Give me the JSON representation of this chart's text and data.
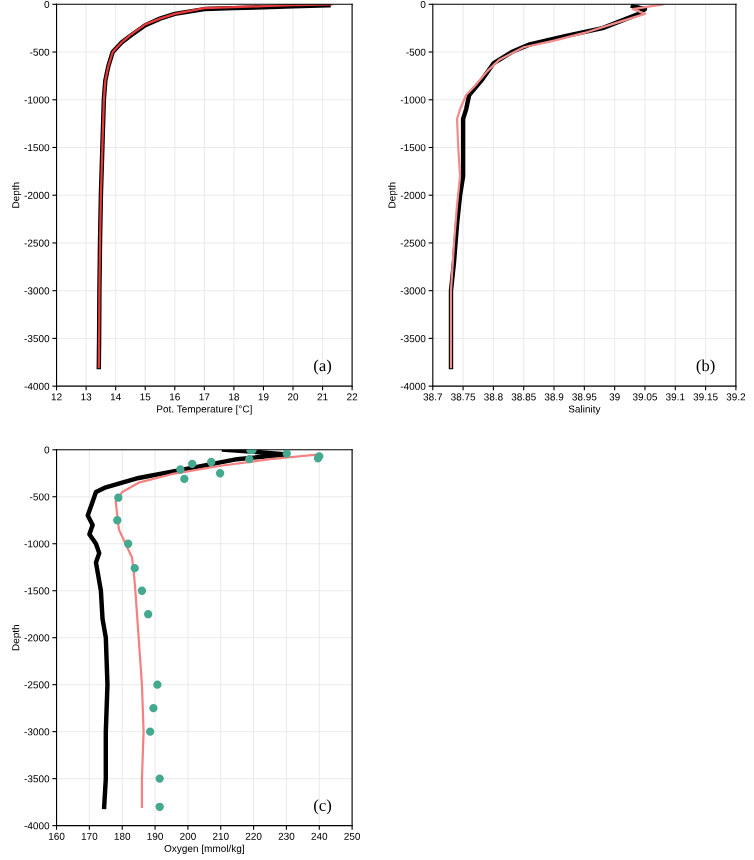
{
  "chart_data": [
    {
      "type": "line",
      "xlabel": "Pot. Temperature [°C]",
      "ylabel": "Depth",
      "annotations": [
        "(a)"
      ],
      "xlim": [
        12,
        22
      ],
      "xticks": [
        12,
        13,
        14,
        15,
        16,
        17,
        18,
        19,
        20,
        21,
        22
      ],
      "ylim": [
        -4000,
        0
      ],
      "yticks": [
        -4000,
        -3500,
        -3000,
        -2500,
        -2000,
        -1500,
        -1000,
        -500,
        0
      ],
      "grid": true,
      "series": [
        {
          "color": "#000000",
          "x": [
            21.2,
            20,
            19,
            18,
            17,
            16,
            15.5,
            15,
            14.5,
            14.2,
            13.9,
            13.75,
            13.65,
            13.6,
            13.55,
            13.5,
            13.47,
            13.45,
            13.44,
            13.43
          ],
          "values": [
            -10,
            -20,
            -30,
            -40,
            -50,
            -100,
            -150,
            -220,
            -330,
            -400,
            -500,
            -650,
            -800,
            -1000,
            -1500,
            -2000,
            -2500,
            -3000,
            -3500,
            -3800
          ]
        },
        {
          "color": "#e83a3a",
          "x": [
            21.3,
            20,
            19,
            18,
            17,
            16,
            15.5,
            15,
            14.5,
            14.2,
            13.9,
            13.75,
            13.65,
            13.6,
            13.55,
            13.5,
            13.47,
            13.45,
            13.44,
            13.43
          ],
          "values": [
            0,
            -10,
            -20,
            -30,
            -40,
            -100,
            -150,
            -210,
            -320,
            -400,
            -500,
            -650,
            -800,
            -1000,
            -1500,
            -2000,
            -2500,
            -3000,
            -3500,
            -3800
          ]
        }
      ]
    },
    {
      "type": "line",
      "xlabel": "Salinity",
      "ylabel": "Depth",
      "annotations": [
        "(b)"
      ],
      "xlim": [
        38.7,
        39.2
      ],
      "xticks": [
        38.7,
        38.75,
        38.8,
        38.85,
        38.9,
        38.95,
        39,
        39.05,
        39.1,
        39.15,
        39.2
      ],
      "ylim": [
        -4000,
        0
      ],
      "yticks": [
        -4000,
        -3500,
        -3000,
        -2500,
        -2000,
        -1500,
        -1000,
        -500,
        0
      ],
      "grid": true,
      "series": [
        {
          "color": "#000000",
          "x": [
            39.03,
            39.05,
            39.04,
            39.02,
            38.98,
            38.92,
            38.86,
            38.83,
            38.8,
            38.78,
            38.76,
            38.755,
            38.75,
            38.75,
            38.75,
            38.745,
            38.74,
            38.735,
            38.73,
            38.73,
            38.73
          ],
          "values": [
            -20,
            -50,
            -100,
            -150,
            -250,
            -330,
            -420,
            -500,
            -620,
            -800,
            -950,
            -1100,
            -1200,
            -1500,
            -1800,
            -2000,
            -2300,
            -2700,
            -3000,
            -3500,
            -3800
          ]
        },
        {
          "color": "#f28b8b",
          "x": [
            39.08,
            39.03,
            39.05,
            39.0,
            38.95,
            38.9,
            38.85,
            38.81,
            38.79,
            38.77,
            38.755,
            38.745,
            38.74,
            38.742,
            38.745,
            38.74,
            38.735,
            38.73,
            38.73
          ],
          "values": [
            0,
            -50,
            -100,
            -200,
            -300,
            -380,
            -450,
            -580,
            -700,
            -850,
            -950,
            -1100,
            -1200,
            -1500,
            -1800,
            -2100,
            -2500,
            -3000,
            -3800
          ]
        }
      ]
    },
    {
      "type": "line",
      "xlabel": "Oxygen [mmol/kg]",
      "ylabel": "Depth",
      "annotations": [
        "(c)"
      ],
      "xlim": [
        160,
        250
      ],
      "xticks": [
        160,
        170,
        180,
        190,
        200,
        210,
        220,
        230,
        240,
        250
      ],
      "ylim": [
        -4000,
        0
      ],
      "yticks": [
        -4000,
        -3500,
        -3000,
        -2500,
        -2000,
        -1500,
        -1000,
        -500,
        0
      ],
      "grid": true,
      "series": [
        {
          "color": "#000000",
          "x": [
            211,
            220,
            230,
            215,
            200,
            185,
            175,
            172,
            171,
            170,
            169.5,
            171,
            170,
            172,
            173,
            172,
            173.5,
            174,
            175,
            175.5,
            175,
            175,
            174.5
          ],
          "values": [
            0,
            -20,
            -50,
            -100,
            -200,
            -300,
            -400,
            -450,
            -550,
            -650,
            -700,
            -800,
            -900,
            -1000,
            -1100,
            -1200,
            -1500,
            -1800,
            -2000,
            -2500,
            -3000,
            -3500,
            -3800
          ]
        },
        {
          "color": "#f58080",
          "x": [
            240,
            225,
            210,
            195,
            185,
            180,
            178,
            178.5,
            179,
            181,
            183,
            183.5,
            184,
            185,
            186,
            186.5,
            186,
            186
          ],
          "values": [
            -50,
            -100,
            -170,
            -260,
            -350,
            -450,
            -550,
            -700,
            -850,
            -1000,
            -1150,
            -1300,
            -1500,
            -2000,
            -2500,
            -3000,
            -3500,
            -3800
          ]
        },
        {
          "type": "scatter",
          "color": "#45a98f",
          "marker": "circle",
          "x": [
            219,
            219.7,
            230.1,
            240,
            239.6,
            218.7,
            207.1,
            201.3,
            197.7,
            209.8,
            198.9,
            178.8,
            178.5,
            181.8,
            183.8,
            186,
            187.9,
            190.7,
            189.5,
            188.5,
            191.4,
            191.4
          ],
          "values": [
            0,
            0,
            -40,
            -70,
            -90,
            -100,
            -130,
            -150,
            -210,
            -250,
            -310,
            -510,
            -750,
            -1000,
            -1260,
            -1500,
            -1750,
            -2500,
            -2750,
            -3000,
            -3500,
            -3800
          ]
        }
      ]
    }
  ]
}
